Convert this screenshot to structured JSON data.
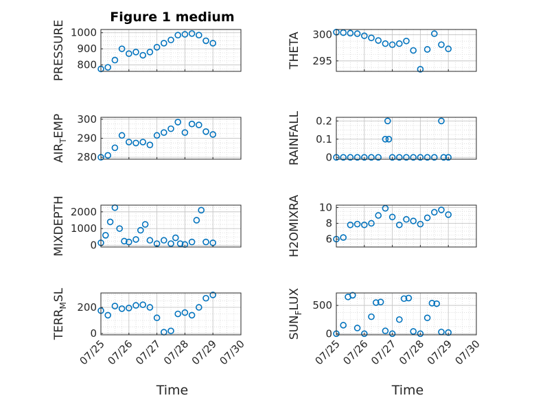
{
  "figure": {
    "title": "Figure 1 medium",
    "marker_color": "#0072BD",
    "axis_color": "#262626",
    "background": "#ffffff"
  },
  "chart_data": [
    {
      "type": "scatter",
      "ylabel_main": "PRESSURE",
      "ylabel_sub": "",
      "ylabel_tail": "",
      "xlim": [
        "07/25",
        "07/30"
      ],
      "ylim": [
        760,
        1020
      ],
      "yticks": [
        800,
        900,
        1000
      ],
      "xticks": [
        "07/25",
        "07/26",
        "07/27",
        "07/28",
        "07/29",
        "07/30"
      ],
      "show_xticklabels": false,
      "grid": true,
      "x": [
        "07/25 00:00",
        "07/25 06:00",
        "07/25 12:00",
        "07/25 18:00",
        "07/26 00:00",
        "07/26 06:00",
        "07/26 12:00",
        "07/26 18:00",
        "07/27 00:00",
        "07/27 06:00",
        "07/27 12:00",
        "07/27 18:00",
        "07/28 00:00",
        "07/28 06:00",
        "07/28 12:00",
        "07/28 18:00",
        "07/29 00:00"
      ],
      "y": [
        775,
        785,
        830,
        900,
        870,
        880,
        860,
        880,
        910,
        935,
        955,
        985,
        990,
        995,
        985,
        950,
        935
      ]
    },
    {
      "type": "scatter",
      "ylabel_main": "THETA",
      "ylabel_sub": "",
      "ylabel_tail": "",
      "xlim": [
        "07/25",
        "07/30"
      ],
      "ylim": [
        293,
        301
      ],
      "yticks": [
        295,
        300
      ],
      "xticks": [
        "07/25",
        "07/26",
        "07/27",
        "07/28",
        "07/29",
        "07/30"
      ],
      "show_xticklabels": false,
      "grid": true,
      "x": [
        "07/25 00:00",
        "07/25 06:00",
        "07/25 12:00",
        "07/25 18:00",
        "07/26 00:00",
        "07/26 06:00",
        "07/26 12:00",
        "07/26 18:00",
        "07/27 00:00",
        "07/27 06:00",
        "07/27 12:00",
        "07/27 18:00",
        "07/28 00:00",
        "07/28 06:00",
        "07/28 12:00",
        "07/28 18:00",
        "07/29 00:00"
      ],
      "y": [
        300.5,
        300.4,
        300.3,
        300.2,
        299.8,
        299.4,
        298.9,
        298.3,
        298.1,
        298.3,
        298.8,
        297.0,
        293.4,
        297.2,
        300.2,
        298.1,
        297.3
      ]
    },
    {
      "type": "scatter",
      "ylabel_main": "AIR",
      "ylabel_sub": "T",
      "ylabel_tail": "EMP",
      "xlim": [
        "07/25",
        "07/30"
      ],
      "ylim": [
        279,
        301
      ],
      "yticks": [
        280,
        290,
        300
      ],
      "xticks": [
        "07/25",
        "07/26",
        "07/27",
        "07/28",
        "07/29",
        "07/30"
      ],
      "show_xticklabels": false,
      "grid": true,
      "x": [
        "07/25 00:00",
        "07/25 06:00",
        "07/25 12:00",
        "07/25 18:00",
        "07/26 00:00",
        "07/26 06:00",
        "07/26 12:00",
        "07/26 18:00",
        "07/27 00:00",
        "07/27 06:00",
        "07/27 12:00",
        "07/27 18:00",
        "07/28 00:00",
        "07/28 06:00",
        "07/28 12:00",
        "07/28 18:00",
        "07/29 00:00"
      ],
      "y": [
        280,
        281,
        285,
        291.5,
        288,
        287.5,
        288,
        286.5,
        291.5,
        293,
        295,
        298.5,
        293,
        297.5,
        297,
        293.5,
        292
      ]
    },
    {
      "type": "scatter",
      "ylabel_main": "RAINFALL",
      "ylabel_sub": "",
      "ylabel_tail": "",
      "xlim": [
        "07/25",
        "07/30"
      ],
      "ylim": [
        -0.01,
        0.22
      ],
      "yticks": [
        0,
        0.1,
        0.2
      ],
      "xticks": [
        "07/25",
        "07/26",
        "07/27",
        "07/28",
        "07/29",
        "07/30"
      ],
      "show_xticklabels": false,
      "grid": true,
      "x": [
        "07/25 00:00",
        "07/25 06:00",
        "07/25 12:00",
        "07/25 18:00",
        "07/26 00:00",
        "07/26 06:00",
        "07/26 12:00",
        "07/26 18:00",
        "07/26 20:00",
        "07/26 21:00",
        "07/27 00:00",
        "07/27 06:00",
        "07/27 12:00",
        "07/27 18:00",
        "07/28 00:00",
        "07/28 06:00",
        "07/28 12:00",
        "07/28 18:00",
        "07/28 20:00",
        "07/29 00:00"
      ],
      "y": [
        0,
        0,
        0,
        0,
        0,
        0,
        0,
        0.1,
        0.2,
        0.1,
        0,
        0,
        0,
        0,
        0,
        0,
        0,
        0.2,
        0,
        0
      ]
    },
    {
      "type": "scatter",
      "ylabel_main": "MIXDEPTH",
      "ylabel_sub": "",
      "ylabel_tail": "",
      "xlim": [
        "07/25",
        "07/30"
      ],
      "ylim": [
        -100,
        2400
      ],
      "yticks": [
        0,
        1000,
        2000
      ],
      "xticks": [
        "07/25",
        "07/26",
        "07/27",
        "07/28",
        "07/29",
        "07/30"
      ],
      "show_xticklabels": false,
      "grid": true,
      "x": [
        "07/25 00:00",
        "07/25 04:00",
        "07/25 08:00",
        "07/25 12:00",
        "07/25 16:00",
        "07/25 20:00",
        "07/26 00:00",
        "07/26 06:00",
        "07/26 10:00",
        "07/26 14:00",
        "07/26 18:00",
        "07/27 00:00",
        "07/27 06:00",
        "07/27 12:00",
        "07/27 16:00",
        "07/27 20:00",
        "07/28 00:00",
        "07/28 06:00",
        "07/28 10:00",
        "07/28 14:00",
        "07/28 18:00",
        "07/29 00:00"
      ],
      "y": [
        150,
        600,
        1400,
        2250,
        1000,
        250,
        200,
        350,
        900,
        1250,
        300,
        100,
        300,
        100,
        450,
        100,
        50,
        200,
        1500,
        2100,
        200,
        150
      ]
    },
    {
      "type": "scatter",
      "ylabel_main": "H2OMIXRA",
      "ylabel_sub": "",
      "ylabel_tail": "",
      "xlim": [
        "07/25",
        "07/30"
      ],
      "ylim": [
        5,
        10.3
      ],
      "yticks": [
        6,
        8,
        10
      ],
      "xticks": [
        "07/25",
        "07/26",
        "07/27",
        "07/28",
        "07/29",
        "07/30"
      ],
      "show_xticklabels": false,
      "grid": true,
      "x": [
        "07/25 00:00",
        "07/25 06:00",
        "07/25 12:00",
        "07/25 18:00",
        "07/26 00:00",
        "07/26 06:00",
        "07/26 12:00",
        "07/26 18:00",
        "07/27 00:00",
        "07/27 06:00",
        "07/27 12:00",
        "07/27 18:00",
        "07/28 00:00",
        "07/28 06:00",
        "07/28 12:00",
        "07/28 18:00",
        "07/29 00:00"
      ],
      "y": [
        6.0,
        6.2,
        7.8,
        7.9,
        7.8,
        8.0,
        9.0,
        9.9,
        8.8,
        7.8,
        8.5,
        8.3,
        7.9,
        8.7,
        9.4,
        9.7,
        9.1
      ]
    },
    {
      "type": "scatter",
      "ylabel_main": "TERR",
      "ylabel_sub": "M",
      "ylabel_tail": "SL",
      "xlim": [
        "07/25",
        "07/30"
      ],
      "ylim": [
        -10,
        310
      ],
      "yticks": [
        0,
        200
      ],
      "xticks": [
        "07/25",
        "07/26",
        "07/27",
        "07/28",
        "07/29",
        "07/30"
      ],
      "show_xticklabels": true,
      "grid": true,
      "x": [
        "07/25 00:00",
        "07/25 06:00",
        "07/25 12:00",
        "07/25 18:00",
        "07/26 00:00",
        "07/26 06:00",
        "07/26 12:00",
        "07/26 18:00",
        "07/27 00:00",
        "07/27 06:00",
        "07/27 12:00",
        "07/27 18:00",
        "07/28 00:00",
        "07/28 06:00",
        "07/28 12:00",
        "07/28 18:00",
        "07/29 00:00"
      ],
      "y": [
        175,
        140,
        210,
        190,
        195,
        215,
        220,
        200,
        120,
        10,
        20,
        150,
        160,
        140,
        200,
        270,
        295
      ]
    },
    {
      "type": "scatter",
      "ylabel_main": "SUN",
      "ylabel_sub": "F",
      "ylabel_tail": "LUX",
      "xlim": [
        "07/25",
        "07/30"
      ],
      "ylim": [
        -20,
        720
      ],
      "yticks": [
        0,
        500
      ],
      "xticks": [
        "07/25",
        "07/26",
        "07/27",
        "07/28",
        "07/29",
        "07/30"
      ],
      "show_xticklabels": true,
      "grid": true,
      "x": [
        "07/25 00:00",
        "07/25 06:00",
        "07/25 10:00",
        "07/25 14:00",
        "07/25 18:00",
        "07/26 00:00",
        "07/26 06:00",
        "07/26 10:00",
        "07/26 14:00",
        "07/26 18:00",
        "07/27 00:00",
        "07/27 06:00",
        "07/27 10:00",
        "07/27 14:00",
        "07/27 18:00",
        "07/28 00:00",
        "07/28 06:00",
        "07/28 10:00",
        "07/28 14:00",
        "07/28 18:00",
        "07/29 00:00"
      ],
      "y": [
        0,
        150,
        650,
        680,
        100,
        0,
        300,
        550,
        560,
        50,
        0,
        250,
        620,
        630,
        40,
        0,
        280,
        540,
        530,
        30,
        20
      ]
    }
  ]
}
